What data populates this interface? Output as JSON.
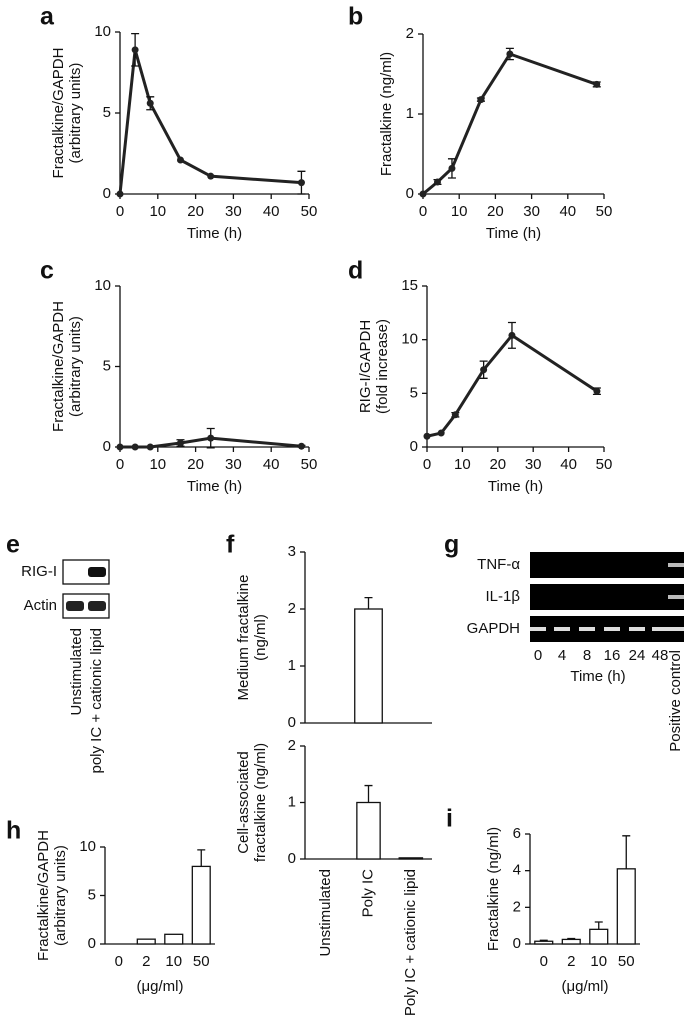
{
  "chart_data": [
    {
      "type": "line",
      "label": "a",
      "ylabel": [
        "Fractalkine/GAPDH",
        "(arbitrary units)"
      ],
      "xlabel": "Time (h)",
      "x": [
        0,
        4,
        8,
        16,
        24,
        48
      ],
      "values": [
        0,
        8.9,
        5.6,
        2.1,
        1.1,
        0.7
      ],
      "errors": [
        null,
        1,
        0.4,
        null,
        null,
        0.7
      ],
      "xlim": [
        0,
        50
      ],
      "xticks": [
        0,
        10,
        20,
        30,
        40,
        50
      ],
      "ylim": [
        0,
        10
      ],
      "yticks": [
        0,
        5,
        10
      ],
      "color": "#222"
    },
    {
      "type": "line",
      "label": "b",
      "ylabel": [
        "Fractalkine (ng/ml)"
      ],
      "xlabel": "Time (h)",
      "x": [
        0,
        4,
        8,
        16,
        24,
        48
      ],
      "values": [
        0,
        0.15,
        0.32,
        1.18,
        1.75,
        1.37
      ],
      "errors": [
        null,
        0.03,
        0.12,
        0.02,
        0.07,
        0.03
      ],
      "xlim": [
        0,
        50
      ],
      "xticks": [
        0,
        10,
        20,
        30,
        40,
        50
      ],
      "ylim": [
        0,
        2
      ],
      "yticks": [
        0,
        1,
        2
      ],
      "color": "#222"
    },
    {
      "type": "line",
      "label": "c",
      "ylabel": [
        "Fractalkine/GAPDH",
        "(arbitrary units)"
      ],
      "xlabel": "Time (h)",
      "x": [
        0,
        4,
        8,
        16,
        24,
        48
      ],
      "values": [
        0,
        0,
        0,
        0.25,
        0.55,
        0.05
      ],
      "errors": [
        null,
        null,
        null,
        0.2,
        0.6,
        0.05
      ],
      "xlim": [
        0,
        50
      ],
      "xticks": [
        0,
        10,
        20,
        30,
        40,
        50
      ],
      "ylim": [
        0,
        10
      ],
      "yticks": [
        0,
        5,
        10
      ],
      "color": "#222"
    },
    {
      "type": "line",
      "label": "d",
      "ylabel": [
        "RIG-I/GAPDH",
        "(fold increase)"
      ],
      "xlabel": "Time (h)",
      "x": [
        0,
        4,
        8,
        16,
        24,
        48
      ],
      "values": [
        1,
        1.3,
        3,
        7.2,
        10.4,
        5.2
      ],
      "errors": [
        null,
        null,
        0.2,
        0.8,
        1.2,
        0.3
      ],
      "xlim": [
        0,
        50
      ],
      "xticks": [
        0,
        10,
        20,
        30,
        40,
        50
      ],
      "ylim": [
        0,
        15
      ],
      "yticks": [
        0,
        5,
        10,
        15
      ],
      "color": "#222"
    },
    {
      "type": "blot",
      "label": "e",
      "rows": [
        "RIG-I",
        "Actin"
      ],
      "lanes": [
        "Unstimulated",
        "poly IC + cationic lipid"
      ]
    },
    {
      "type": "bar",
      "label": "f",
      "ylabel": [
        "Medium fractalkine",
        "(ng/ml)"
      ],
      "values": [
        0,
        2,
        0
      ],
      "errors": [
        null,
        0.2,
        null
      ],
      "ylim": [
        0,
        3
      ],
      "yticks": [
        0,
        1,
        2,
        3
      ],
      "color": "#fff"
    },
    {
      "type": "bar",
      "ylabel": [
        "Cell-associated",
        "fractalkine (ng/ml)"
      ],
      "categories": [
        "Unstimulated",
        "Poly IC",
        "Poly IC + cationic lipid"
      ],
      "values": [
        0,
        1,
        0.02
      ],
      "errors": [
        null,
        0.3,
        null
      ],
      "ylim": [
        0,
        2
      ],
      "yticks": [
        0,
        1,
        2
      ],
      "color": "#fff"
    },
    {
      "type": "gel",
      "label": "g",
      "rows": [
        "TNF-α",
        "IL-1β",
        "GAPDH"
      ],
      "lanes": [
        "0",
        "4",
        "8",
        "16",
        "24",
        "48",
        "Positive control"
      ],
      "xlabel": "Time (h)"
    },
    {
      "type": "bar",
      "label": "h",
      "ylabel": [
        "Fractalkine/GAPDH",
        "(arbitrary units)"
      ],
      "xlabel": "(μg/ml)",
      "categories": [
        "0",
        "2",
        "10",
        "50"
      ],
      "values": [
        0,
        0.5,
        1,
        8
      ],
      "errors": [
        null,
        null,
        null,
        1.7
      ],
      "ylim": [
        0,
        10
      ],
      "yticks": [
        0,
        5,
        10
      ],
      "color": "#fff"
    },
    {
      "type": "bar",
      "label": "i",
      "ylabel": [
        "Fractalkine (ng/ml)"
      ],
      "xlabel": "(μg/ml)",
      "categories": [
        "0",
        "2",
        "10",
        "50"
      ],
      "values": [
        0.15,
        0.25,
        0.8,
        4.1
      ],
      "errors": [
        0.05,
        0.05,
        0.4,
        1.8
      ],
      "ylim": [
        0,
        6
      ],
      "yticks": [
        0,
        2,
        4,
        6
      ],
      "color": "#fff"
    }
  ]
}
